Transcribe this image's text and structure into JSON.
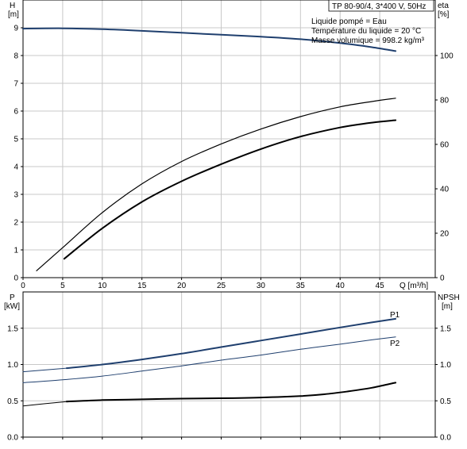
{
  "chart_data": [
    {
      "type": "line",
      "title": "TP 80-90/4, 3*400 V, 50Hz",
      "notes": [
        "Liquide pompé = Eau",
        "Température du liquide = 20 °C",
        "Masse volumique = 998.2 kg/m³"
      ],
      "y_left_label": [
        "H",
        "[m]"
      ],
      "y_right_label": [
        "eta",
        "[%]"
      ],
      "xlabel": "Q [m³/h]",
      "xlim": [
        0,
        52
      ],
      "xticks": [
        0,
        5,
        10,
        15,
        20,
        25,
        30,
        35,
        40,
        45
      ],
      "ylim_left": [
        0,
        10
      ],
      "yticks_left": [
        0,
        1,
        2,
        3,
        4,
        5,
        6,
        7,
        8,
        9
      ],
      "ylim_right": [
        0,
        125
      ],
      "yticks_right": [
        0,
        20,
        40,
        60,
        80,
        100
      ],
      "grid": true,
      "series": [
        {
          "axis": "left",
          "color": "#1f3f6e",
          "width": 2,
          "x": [
            0,
            5,
            10,
            15,
            20,
            25,
            30,
            35,
            40,
            44,
            47
          ],
          "y": [
            8.97,
            8.98,
            8.95,
            8.89,
            8.82,
            8.75,
            8.68,
            8.59,
            8.45,
            8.3,
            8.16
          ]
        },
        {
          "axis": "right",
          "color": "#000000",
          "width": 1.2,
          "x": [
            1.7,
            5,
            10,
            15,
            20,
            25,
            30,
            35,
            40,
            44,
            47
          ],
          "y": [
            3.1,
            13.5,
            29.3,
            42.2,
            52.3,
            60.2,
            66.9,
            72.5,
            76.9,
            79.3,
            80.8
          ]
        },
        {
          "axis": "right",
          "color": "#000000",
          "width": 2,
          "x": [
            5.2,
            10,
            15,
            20,
            25,
            30,
            35,
            40,
            44,
            47
          ],
          "y": [
            8.5,
            22.2,
            34.1,
            43.4,
            51.1,
            57.9,
            63.5,
            67.6,
            69.8,
            70.9
          ]
        }
      ]
    },
    {
      "type": "line",
      "y_left_label": [
        "P",
        "[kW]"
      ],
      "y_right_label": [
        "NPSH",
        "[m]"
      ],
      "xlim": [
        0,
        52
      ],
      "xticks": [
        0,
        5,
        10,
        15,
        20,
        25,
        30,
        35,
        40,
        45
      ],
      "ylim_left": [
        0,
        2.0
      ],
      "yticks_left": [
        "0.0",
        "0.5",
        "1.0",
        "1.5"
      ],
      "ylim_right": [
        0,
        2.0
      ],
      "yticks_right": [
        "0.0",
        "0.5",
        "1.0",
        "1.5"
      ],
      "grid": true,
      "series": [
        {
          "name": "P1",
          "axis": "left",
          "color": "#1f3f6e",
          "width": 2,
          "x": [
            5.5,
            10,
            15,
            20,
            25,
            30,
            35,
            40,
            44,
            47
          ],
          "y": [
            0.95,
            1.0,
            1.07,
            1.15,
            1.24,
            1.33,
            1.42,
            1.51,
            1.58,
            1.63
          ]
        },
        {
          "name": "",
          "axis": "left",
          "color": "#1f3f6e",
          "width": 1,
          "x": [
            0,
            5.5
          ],
          "y": [
            0.9,
            0.95
          ]
        },
        {
          "name": "P2",
          "axis": "left",
          "color": "#1f3f6e",
          "width": 1,
          "x": [
            0,
            5,
            10,
            15,
            20,
            25,
            30,
            35,
            40,
            44,
            47
          ],
          "y": [
            0.75,
            0.79,
            0.84,
            0.91,
            0.98,
            1.06,
            1.13,
            1.21,
            1.28,
            1.34,
            1.38
          ]
        },
        {
          "name": "",
          "axis": "right",
          "color": "#000000",
          "width": 2,
          "x": [
            5.5,
            10,
            15,
            20,
            25,
            30,
            35,
            38,
            41,
            44,
            47
          ],
          "y": [
            0.49,
            0.51,
            0.52,
            0.53,
            0.535,
            0.545,
            0.565,
            0.59,
            0.63,
            0.68,
            0.75
          ]
        },
        {
          "name": "",
          "axis": "right",
          "color": "#000000",
          "width": 1,
          "x": [
            0,
            5.5
          ],
          "y": [
            0.43,
            0.49
          ]
        }
      ]
    }
  ]
}
